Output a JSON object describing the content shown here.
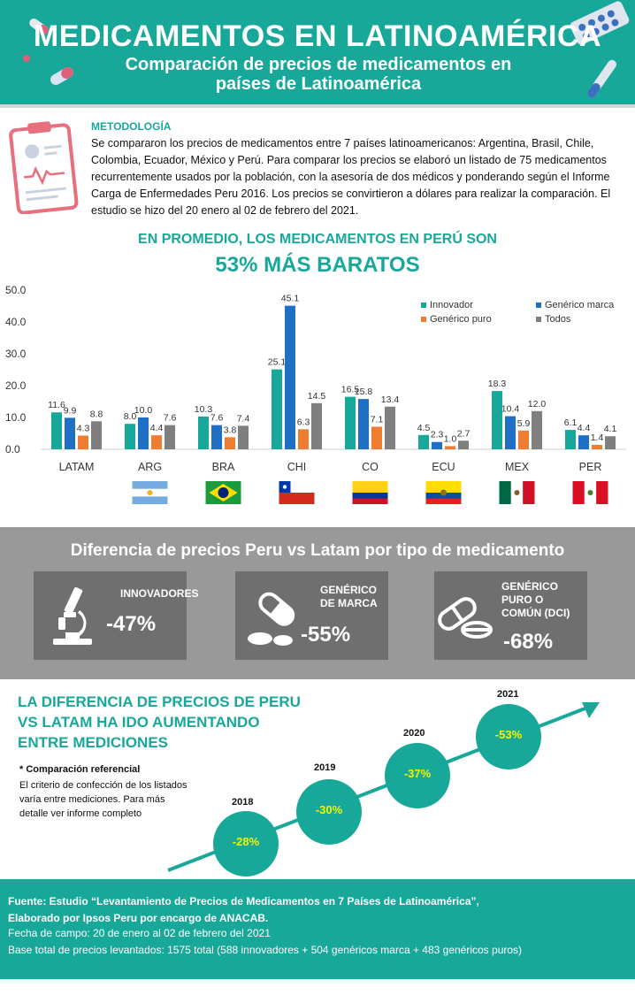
{
  "header": {
    "title": "MEDICAMENTOS EN LATINOAMÉRICA",
    "subtitle": "Comparación de precios de medicamentos en países de Latinoamérica"
  },
  "methodology": {
    "title": "METODOLOGÍA",
    "text": "Se compararon  los precios de medicamentos entre 7 países latinoamericanos: Argentina, Brasil, Chile, Colombia, Ecuador,  México y Perú. Para comparar  los precios se elaboró un listado de 75 medicamentos recurrentemente usados por la población, con  la asesoría de dos médicos y ponderando según el Informe Carga de Enfermedades Peru 2016.  Los precios se convirtieron a dólares para  realizar la comparación.  El estudio se hizo del 20 enero al 02  de febrero del 2021."
  },
  "headline": {
    "line1": "EN PROMEDIO, LOS MEDICAMENTOS EN PERÚ SON",
    "line2": "53% MÁS BARATOS"
  },
  "chart_data": {
    "type": "bar",
    "categories": [
      "LATAM",
      "ARG",
      "BRA",
      "CHI",
      "CO",
      "ECU",
      "MEX",
      "PER"
    ],
    "series": [
      {
        "name": "Innovador",
        "color": "#17a89a",
        "values": [
          11.6,
          8.0,
          10.3,
          25.1,
          16.5,
          4.5,
          18.3,
          6.1
        ]
      },
      {
        "name": "Genérico marca",
        "color": "#1f6fc4",
        "values": [
          9.9,
          10.0,
          7.6,
          45.1,
          15.8,
          2.3,
          10.4,
          4.4
        ]
      },
      {
        "name": "Genérico puro",
        "color": "#ef7d31",
        "values": [
          4.3,
          4.4,
          3.8,
          6.3,
          7.1,
          1.0,
          5.9,
          1.4
        ]
      },
      {
        "name": "Todos",
        "color": "#7f7f7f",
        "values": [
          8.8,
          7.6,
          7.4,
          14.5,
          13.4,
          2.7,
          12.0,
          4.1
        ]
      }
    ],
    "yticks": [
      "0.0",
      "10.0",
      "20.0",
      "30.0",
      "40.0",
      "50.0"
    ],
    "ylim": [
      0,
      50
    ],
    "legend": "top-right",
    "grid": false
  },
  "comparison": {
    "title": "Diferencia de precios Peru vs Latam por tipo de medicamento",
    "cards": [
      {
        "label": "INNOVADORES",
        "value": "-47%",
        "icon": "microscope-icon"
      },
      {
        "label": "GENÉRICO DE MARCA",
        "value": "-55%",
        "icon": "capsule-pill-icon"
      },
      {
        "label": "GENÉRICO PURO O COMÚN (DCI)",
        "value": "-68%",
        "icon": "capsule-tablet-icon"
      }
    ]
  },
  "trend": {
    "title": "LA DIFERENCIA DE PRECIOS DE PERU VS LATAM HA IDO AUMENTANDO ENTRE MEDICIONES",
    "note_title": "* Comparación  referencial",
    "note_text": "El criterio de confección de  los listados varía entre mediciones. Para más detalle ver informe completo",
    "points": [
      {
        "year": "2018",
        "value": "-28%"
      },
      {
        "year": "2019",
        "value": "-30%"
      },
      {
        "year": "2020",
        "value": "-37%"
      },
      {
        "year": "2021",
        "value": "-53%"
      }
    ]
  },
  "footer": {
    "line1": "Fuente:  Estudio “Levantamiento  de Precios de Medicamentos en 7 Países de Latinoamérica”,",
    "line2": "Elaborado  por Ipsos Peru por encargo de ANACAB.",
    "line3": "Fecha de campo:  20 de enero al 02 de febrero del 2021",
    "line4": "Base total de precios levantados: 1575  total (588  innovadores + 504  genéricos marca  + 483  genéricos puros)"
  },
  "colors": {
    "teal": "#17a89a",
    "blue": "#1f6fc4",
    "orange": "#ef7d31",
    "grey": "#7f7f7f",
    "yellow": "#f4f400"
  }
}
